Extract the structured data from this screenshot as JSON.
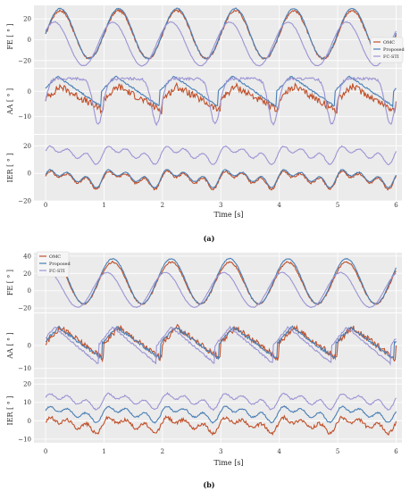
{
  "colors": {
    "omc": "#c0502a",
    "proposed": "#4a7fb5",
    "fcsti": "#9b94d4",
    "panel_bg": "#ebebeb"
  },
  "figures": [
    {
      "caption": "(a)",
      "xlabel": "Time [s]",
      "legend": [
        "OMC",
        "Proposed",
        "FC-STI"
      ],
      "chart_data": [
        {
          "type": "line",
          "ylabel": "FE [ ° ]",
          "xlim": [
            -0.2,
            6.1
          ],
          "ylim": [
            -27,
            33
          ],
          "yticks": [
            "20",
            "0",
            "−20"
          ],
          "ytick_values": [
            20,
            0,
            -20
          ],
          "series": [
            {
              "name": "OMC",
              "kind": "sin",
              "mean": 5,
              "amp": 23,
              "period": 1,
              "phase": 0.0,
              "noise": 1.2
            },
            {
              "name": "Proposed",
              "kind": "sin",
              "mean": 6,
              "amp": 24,
              "period": 1,
              "phase": 0.0,
              "noise": 0.6
            },
            {
              "name": "FC-STI",
              "kind": "sin",
              "mean": -4,
              "amp": 21,
              "period": 1,
              "phase": 0.1,
              "noise": 0.4
            }
          ]
        },
        {
          "type": "line",
          "ylabel": "AA [ ° ]",
          "xlim": [
            -0.2,
            6.1
          ],
          "ylim": [
            -17,
            9
          ],
          "yticks": [
            "0",
            "−10"
          ],
          "ytick_values": [
            0,
            -10
          ],
          "series": [
            {
              "name": "OMC",
              "kind": "saw",
              "mean": -3,
              "amp": 5,
              "period": 1,
              "phase": 0.0,
              "noise": 1.4
            },
            {
              "name": "Proposed",
              "kind": "saw",
              "mean": 0,
              "amp": 6,
              "period": 1,
              "phase": 0.05,
              "noise": 0.3
            },
            {
              "name": "FC-STI",
              "kind": "dip",
              "mean": -4,
              "amp": 9,
              "period": 1,
              "phase": 0.6,
              "noise": 0.5
            }
          ]
        },
        {
          "type": "line",
          "ylabel": "IER [ ° ]",
          "xlim": [
            -0.2,
            6.1
          ],
          "ylim": [
            -20,
            28
          ],
          "yticks": [
            "20",
            "0",
            "−20"
          ],
          "ytick_values": [
            20,
            0,
            -20
          ],
          "series": [
            {
              "name": "OMC",
              "kind": "wig",
              "mean": -4,
              "amp": 6,
              "period": 1,
              "phase": 0.0,
              "noise": 0.8
            },
            {
              "name": "Proposed",
              "kind": "wig",
              "mean": -3,
              "amp": 6,
              "period": 1,
              "phase": 0.0,
              "noise": 0.3
            },
            {
              "name": "FC-STI",
              "kind": "wig",
              "mean": 14,
              "amp": 6,
              "period": 1,
              "phase": 0.0,
              "noise": 0.4
            }
          ]
        }
      ],
      "xticks": [
        "0",
        "1",
        "2",
        "3",
        "4",
        "5",
        "6"
      ]
    },
    {
      "caption": "(b)",
      "xlabel": "Time [s]",
      "legend": [
        "OMC",
        "Proposed",
        "FC-STI"
      ],
      "chart_data": [
        {
          "type": "line",
          "ylabel": "FE [ ° ]",
          "xlim": [
            -0.2,
            6.1
          ],
          "ylim": [
            -25,
            44
          ],
          "yticks": [
            "40",
            "20",
            "0",
            "−20"
          ],
          "ytick_values": [
            40,
            20,
            0,
            -20
          ],
          "series": [
            {
              "name": "OMC",
              "kind": "sin",
              "mean": 9,
              "amp": 24,
              "period": 1,
              "phase": 0.1,
              "noise": 1.0
            },
            {
              "name": "Proposed",
              "kind": "sin",
              "mean": 11,
              "amp": 26,
              "period": 1,
              "phase": 0.1,
              "noise": 0.5
            },
            {
              "name": "FC-STI",
              "kind": "sin",
              "mean": 1,
              "amp": 20,
              "period": 1,
              "phase": 0.2,
              "noise": 0.4
            }
          ]
        },
        {
          "type": "line",
          "ylabel": "AA [ ° ]",
          "xlim": [
            -0.2,
            6.1
          ],
          "ylim": [
            -14,
            14
          ],
          "yticks": [
            "0",
            "−10"
          ],
          "ytick_values": [
            0,
            -10
          ],
          "series": [
            {
              "name": "OMC",
              "kind": "saw",
              "mean": 1,
              "amp": 7,
              "period": 1,
              "phase": 0.0,
              "noise": 1.3
            },
            {
              "name": "Proposed",
              "kind": "saw",
              "mean": 1,
              "amp": 7,
              "period": 1,
              "phase": 0.03,
              "noise": 0.6
            },
            {
              "name": "FC-STI",
              "kind": "saw",
              "mean": 0,
              "amp": 8,
              "period": 1,
              "phase": 0.1,
              "noise": 0.4
            }
          ]
        },
        {
          "type": "line",
          "ylabel": "IER [ ° ]",
          "xlim": [
            -0.2,
            6.1
          ],
          "ylim": [
            -12,
            23
          ],
          "yticks": [
            "20",
            "10",
            "0",
            "−10"
          ],
          "ytick_values": [
            20,
            10,
            0,
            -10
          ],
          "series": [
            {
              "name": "OMC",
              "kind": "wig",
              "mean": -2,
              "amp": 4,
              "period": 1,
              "phase": 0.0,
              "noise": 0.9
            },
            {
              "name": "Proposed",
              "kind": "wig",
              "mean": 4,
              "amp": 4,
              "period": 1,
              "phase": 0.0,
              "noise": 0.4
            },
            {
              "name": "FC-STI",
              "kind": "wig",
              "mean": 11,
              "amp": 4,
              "period": 1,
              "phase": 0.0,
              "noise": 0.4
            }
          ]
        }
      ],
      "xticks": [
        "0",
        "1",
        "2",
        "3",
        "4",
        "5",
        "6"
      ]
    }
  ]
}
